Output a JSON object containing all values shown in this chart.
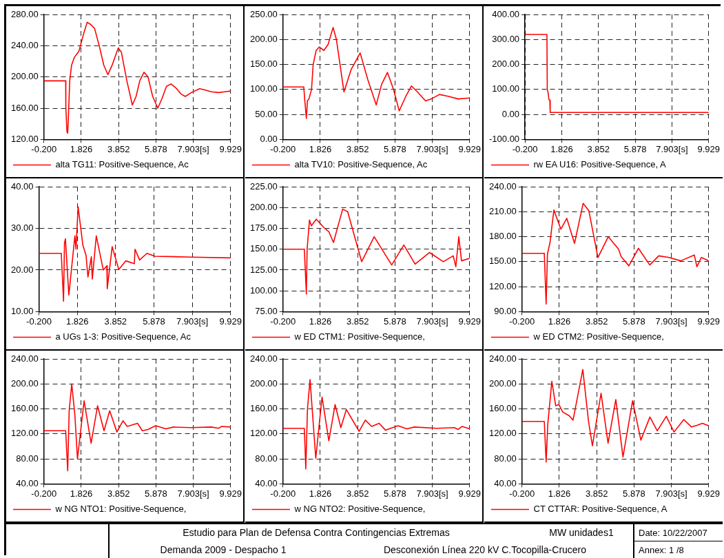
{
  "chart_data": [
    {
      "type": "line",
      "xlim": [
        -0.2,
        9.929
      ],
      "xticks": [
        {
          "value": -0.2,
          "label": "-0.200"
        },
        {
          "value": 1.826,
          "label": "1.826"
        },
        {
          "value": 3.852,
          "label": "3.852"
        },
        {
          "value": 5.878,
          "label": "5.878"
        },
        {
          "value": 7.903,
          "label": "7.903[s]"
        },
        {
          "value": 9.929,
          "label": "9.929"
        }
      ],
      "ylim": [
        120,
        280
      ],
      "yticks": [
        {
          "value": 120,
          "label": "120.00"
        },
        {
          "value": 160,
          "label": "160.00"
        },
        {
          "value": 200,
          "label": "200.00"
        },
        {
          "value": 240,
          "label": "240.00"
        },
        {
          "value": 280,
          "label": "280.00"
        }
      ],
      "grid": true,
      "legend": "bottom",
      "series": [
        {
          "name": "alta TG11: Positive-Sequence, Ac",
          "color": "#ff0000",
          "x": [
            -0.2,
            0.98,
            0.99,
            1.05,
            1.09,
            1.13,
            1.2,
            1.3,
            1.45,
            1.7,
            1.95,
            2.15,
            2.35,
            2.55,
            2.8,
            3.05,
            3.27,
            3.5,
            3.83,
            4.0,
            4.3,
            4.6,
            4.8,
            5.0,
            5.23,
            5.45,
            5.7,
            5.98,
            6.2,
            6.45,
            6.7,
            7.0,
            7.25,
            7.47,
            7.8,
            8.25,
            8.6,
            8.88,
            9.3,
            9.6,
            9.929
          ],
          "values": [
            195,
            195,
            160,
            130,
            128,
            150,
            195,
            215,
            225,
            233,
            255,
            270,
            267,
            262,
            240,
            215,
            203,
            215,
            237,
            232,
            195,
            164,
            175,
            195,
            206,
            200,
            175,
            160,
            172,
            188,
            191,
            185,
            178,
            175,
            180,
            185,
            183,
            181,
            180,
            181,
            182
          ]
        }
      ]
    },
    {
      "type": "line",
      "xlim": [
        -0.2,
        9.929
      ],
      "xticks": [
        {
          "value": -0.2,
          "label": "-0.200"
        },
        {
          "value": 1.826,
          "label": "1.826"
        },
        {
          "value": 3.852,
          "label": "3.852"
        },
        {
          "value": 5.878,
          "label": "5.878"
        },
        {
          "value": 7.903,
          "label": "7.903[s]"
        },
        {
          "value": 9.929,
          "label": "9.929"
        }
      ],
      "ylim": [
        0,
        250
      ],
      "yticks": [
        {
          "value": 0,
          "label": "0.00"
        },
        {
          "value": 50,
          "label": "50.00"
        },
        {
          "value": 100,
          "label": "100.00"
        },
        {
          "value": 150,
          "label": "150.00"
        },
        {
          "value": 200,
          "label": "200.00"
        },
        {
          "value": 250,
          "label": "250.00"
        }
      ],
      "grid": true,
      "legend": "bottom",
      "series": [
        {
          "name": "alta TV10: Positive-Sequence, Ac",
          "color": "#ff0000",
          "x": [
            -0.2,
            0.93,
            0.98,
            1.07,
            1.13,
            1.2,
            1.35,
            1.44,
            1.6,
            1.77,
            2.02,
            2.25,
            2.52,
            2.7,
            3.11,
            3.5,
            3.99,
            4.4,
            4.86,
            5.15,
            5.47,
            5.8,
            6.11,
            6.45,
            6.77,
            7.1,
            7.54,
            7.9,
            8.29,
            8.8,
            9.3,
            9.929
          ],
          "values": [
            105,
            105,
            80,
            42,
            78,
            80,
            100,
            150,
            178,
            185,
            178,
            190,
            224,
            200,
            95,
            140,
            173,
            120,
            69,
            110,
            134,
            100,
            57,
            85,
            107,
            95,
            77,
            82,
            90,
            86,
            81,
            83
          ]
        }
      ]
    },
    {
      "type": "line",
      "xlim": [
        -0.2,
        9.929
      ],
      "xticks": [
        {
          "value": -0.2,
          "label": "-0.200"
        },
        {
          "value": 1.826,
          "label": "1.826"
        },
        {
          "value": 3.852,
          "label": "3.852"
        },
        {
          "value": 5.878,
          "label": "5.878"
        },
        {
          "value": 7.903,
          "label": "7.903[s]"
        },
        {
          "value": 9.929,
          "label": "9.929"
        }
      ],
      "ylim": [
        -100,
        400
      ],
      "yticks": [
        {
          "value": -100,
          "label": "-100.00"
        },
        {
          "value": 0,
          "label": "0.00"
        },
        {
          "value": 100,
          "label": "100.00"
        },
        {
          "value": 200,
          "label": "200.00"
        },
        {
          "value": 300,
          "label": "300.00"
        },
        {
          "value": 400,
          "label": "400.00"
        }
      ],
      "grid": true,
      "legend": "bottom",
      "series": [
        {
          "name": "rw EA U16: Positive-Sequence, A",
          "color": "#ff0000",
          "x": [
            -0.2,
            1.01,
            1.03,
            1.08,
            1.12,
            1.17,
            1.19,
            9.929
          ],
          "values": [
            320,
            320,
            100,
            85,
            60,
            57,
            8,
            8
          ]
        }
      ]
    },
    {
      "type": "line",
      "xlim": [
        -0.2,
        9.929
      ],
      "xticks": [
        {
          "value": -0.2,
          "label": "-0.200"
        },
        {
          "value": 1.826,
          "label": "1.826"
        },
        {
          "value": 3.852,
          "label": "3.852"
        },
        {
          "value": 5.878,
          "label": "5.878"
        },
        {
          "value": 7.903,
          "label": "7.903[s]"
        },
        {
          "value": 9.929,
          "label": "9.929"
        }
      ],
      "ylim": [
        10,
        40
      ],
      "yticks": [
        {
          "value": 10,
          "label": "10.00"
        },
        {
          "value": 20,
          "label": "20.00"
        },
        {
          "value": 30,
          "label": "30.00"
        },
        {
          "value": 40,
          "label": "40.00"
        }
      ],
      "grid": true,
      "legend": "bottom",
      "series": [
        {
          "name": "a UGs 1-3: Positive-Sequence, Ac",
          "color": "#ff0000",
          "x": [
            -0.2,
            0.98,
            1.1,
            1.15,
            1.2,
            1.38,
            1.7,
            1.76,
            1.87,
            2.12,
            2.29,
            2.39,
            2.57,
            2.62,
            2.83,
            3.2,
            3.39,
            3.41,
            3.67,
            4.02,
            4.39,
            4.84,
            4.88,
            5.12,
            5.51,
            5.93,
            7.9,
            9.929
          ],
          "values": [
            24,
            24,
            12.5,
            26.5,
            27.5,
            14,
            28.2,
            25,
            35.2,
            26,
            23.5,
            18.3,
            23.2,
            17.8,
            28.2,
            20,
            21,
            15.5,
            25.6,
            20.1,
            22.2,
            21.5,
            25,
            22.4,
            24,
            23.3,
            23.1,
            22.9
          ]
        }
      ]
    },
    {
      "type": "line",
      "xlim": [
        -0.2,
        9.929
      ],
      "xticks": [
        {
          "value": -0.2,
          "label": "-0.200"
        },
        {
          "value": 1.826,
          "label": "1.826"
        },
        {
          "value": 3.852,
          "label": "3.852"
        },
        {
          "value": 5.878,
          "label": "5.878"
        },
        {
          "value": 7.903,
          "label": "7.903[s]"
        },
        {
          "value": 9.929,
          "label": "9.929"
        }
      ],
      "ylim": [
        75,
        225
      ],
      "yticks": [
        {
          "value": 75,
          "label": "75.00"
        },
        {
          "value": 100,
          "label": "100.00"
        },
        {
          "value": 125,
          "label": "125.00"
        },
        {
          "value": 150,
          "label": "150.00"
        },
        {
          "value": 175,
          "label": "175.00"
        },
        {
          "value": 200,
          "label": "200.00"
        },
        {
          "value": 225,
          "label": "225.00"
        }
      ],
      "grid": true,
      "legend": "bottom",
      "series": [
        {
          "name": "w ED CTM1: Positive-Sequence,",
          "color": "#ff0000",
          "x": [
            -0.2,
            0.96,
            1.07,
            1.11,
            1.24,
            1.34,
            1.61,
            2.02,
            2.29,
            2.54,
            3.04,
            3.31,
            4.07,
            4.75,
            5.7,
            6.36,
            6.97,
            7.75,
            8.5,
            9.04,
            9.18,
            9.34,
            9.49,
            9.929
          ],
          "values": [
            150,
            150,
            96,
            150,
            185,
            178,
            186,
            176,
            171,
            158,
            198,
            195,
            135,
            165,
            131,
            155,
            132,
            146,
            135,
            142,
            129,
            165,
            136,
            139
          ]
        }
      ]
    },
    {
      "type": "line",
      "xlim": [
        -0.2,
        9.929
      ],
      "xticks": [
        {
          "value": -0.2,
          "label": "-0.200"
        },
        {
          "value": 1.826,
          "label": "1.826"
        },
        {
          "value": 3.852,
          "label": "3.852"
        },
        {
          "value": 5.878,
          "label": "5.878"
        },
        {
          "value": 7.903,
          "label": "7.903[s]"
        },
        {
          "value": 9.929,
          "label": "9.929"
        }
      ],
      "ylim": [
        90,
        240
      ],
      "yticks": [
        {
          "value": 90,
          "label": "90.00"
        },
        {
          "value": 120,
          "label": "120.00"
        },
        {
          "value": 150,
          "label": "150.00"
        },
        {
          "value": 180,
          "label": "180.00"
        },
        {
          "value": 210,
          "label": "210.00"
        },
        {
          "value": 240,
          "label": "240.00"
        }
      ],
      "grid": true,
      "legend": "bottom",
      "series": [
        {
          "name": "w ED CTM2: Positive-Sequence,",
          "color": "#ff0000",
          "x": [
            -0.2,
            1.01,
            1.11,
            1.18,
            1.32,
            1.53,
            1.91,
            2.23,
            2.65,
            3.12,
            3.43,
            3.92,
            4.48,
            5.04,
            5.18,
            5.6,
            6.12,
            6.73,
            7.22,
            7.78,
            8.41,
            9.15,
            9.29,
            9.53,
            9.929
          ],
          "values": [
            160,
            160,
            99,
            159,
            173,
            212,
            189,
            202,
            172,
            220,
            211,
            155,
            180,
            165,
            156,
            145,
            166,
            146,
            157,
            155,
            151,
            158,
            144,
            155,
            151
          ]
        }
      ]
    },
    {
      "type": "line",
      "xlim": [
        -0.2,
        9.929
      ],
      "xticks": [
        {
          "value": -0.2,
          "label": "-0.200"
        },
        {
          "value": 1.826,
          "label": "1.826"
        },
        {
          "value": 3.852,
          "label": "3.852"
        },
        {
          "value": 5.878,
          "label": "5.878"
        },
        {
          "value": 7.903,
          "label": "7.903[s]"
        },
        {
          "value": 9.929,
          "label": "9.929"
        }
      ],
      "ylim": [
        40,
        240
      ],
      "yticks": [
        {
          "value": 40,
          "label": "40.00"
        },
        {
          "value": 80,
          "label": "80.00"
        },
        {
          "value": 120,
          "label": "120.00"
        },
        {
          "value": 160,
          "label": "160.00"
        },
        {
          "value": 200,
          "label": "200.00"
        },
        {
          "value": 240,
          "label": "240.00"
        }
      ],
      "grid": true,
      "legend": "bottom",
      "series": [
        {
          "name": "w NG NTO1: Positive-Sequence,",
          "color": "#ff0000",
          "x": [
            -0.2,
            0.98,
            1.09,
            1.17,
            1.31,
            1.48,
            1.62,
            1.98,
            2.36,
            2.71,
            3.06,
            3.37,
            3.76,
            4.09,
            4.32,
            4.88,
            5.14,
            5.44,
            5.86,
            6.42,
            6.84,
            7.76,
            8.88,
            9.3,
            9.44,
            9.929
          ],
          "values": [
            125,
            125,
            61,
            157,
            200,
            150,
            80,
            173,
            105,
            165,
            125,
            157,
            123,
            141,
            132,
            137,
            125,
            127,
            133,
            128,
            131,
            130,
            131,
            129,
            132,
            131
          ]
        }
      ]
    },
    {
      "type": "line",
      "xlim": [
        -0.2,
        9.929
      ],
      "xticks": [
        {
          "value": -0.2,
          "label": "-0.200"
        },
        {
          "value": 1.826,
          "label": "1.826"
        },
        {
          "value": 3.852,
          "label": "3.852"
        },
        {
          "value": 5.878,
          "label": "5.878"
        },
        {
          "value": 7.903,
          "label": "7.903[s]"
        },
        {
          "value": 9.929,
          "label": "9.929"
        }
      ],
      "ylim": [
        40,
        240
      ],
      "yticks": [
        {
          "value": 40,
          "label": "40.00"
        },
        {
          "value": 80,
          "label": "80.00"
        },
        {
          "value": 120,
          "label": "120.00"
        },
        {
          "value": 160,
          "label": "160.00"
        },
        {
          "value": 200,
          "label": "200.00"
        },
        {
          "value": 240,
          "label": "240.00"
        }
      ],
      "grid": true,
      "legend": "bottom",
      "series": [
        {
          "name": "w NG NTO2: Positive-Sequence,",
          "color": "#ff0000",
          "x": [
            -0.2,
            0.96,
            1.04,
            1.13,
            1.27,
            1.58,
            1.92,
            2.29,
            2.63,
            2.94,
            3.24,
            3.93,
            4.27,
            4.61,
            5.02,
            5.36,
            6.04,
            6.52,
            6.93,
            8.16,
            9.1,
            9.31,
            9.52,
            9.929
          ],
          "values": [
            129,
            129,
            64,
            160,
            207,
            81,
            179,
            109,
            167,
            130,
            159,
            124,
            142,
            132,
            137,
            126,
            133,
            128,
            131,
            129,
            130,
            127,
            132,
            128
          ]
        }
      ]
    },
    {
      "type": "line",
      "xlim": [
        -0.2,
        9.929
      ],
      "xticks": [
        {
          "value": -0.2,
          "label": "-0.200"
        },
        {
          "value": 1.826,
          "label": "1.826"
        },
        {
          "value": 3.852,
          "label": "3.852"
        },
        {
          "value": 5.878,
          "label": "5.878"
        },
        {
          "value": 7.903,
          "label": "7.903[s]"
        },
        {
          "value": 9.929,
          "label": "9.929"
        }
      ],
      "ylim": [
        40,
        240
      ],
      "yticks": [
        {
          "value": 40,
          "label": "40.00"
        },
        {
          "value": 80,
          "label": "80.00"
        },
        {
          "value": 120,
          "label": "120.00"
        },
        {
          "value": 160,
          "label": "160.00"
        },
        {
          "value": 200,
          "label": "200.00"
        },
        {
          "value": 240,
          "label": "240.00"
        }
      ],
      "grid": true,
      "legend": "bottom",
      "series": [
        {
          "name": "CT CTTAR: Positive-Sequence, A",
          "color": "#ff0000",
          "x": [
            -0.2,
            1.01,
            1.11,
            1.2,
            1.42,
            1.63,
            1.8,
            2.01,
            2.36,
            2.57,
            3.1,
            3.41,
            3.62,
            4.09,
            4.47,
            4.89,
            5.28,
            5.8,
            6.25,
            6.74,
            7.14,
            7.63,
            8.05,
            8.58,
            9.0,
            9.31,
            9.59,
            9.929
          ],
          "values": [
            140,
            140,
            75,
            136,
            204,
            165,
            167,
            155,
            149,
            142,
            223,
            140,
            101,
            185,
            105,
            175,
            83,
            173,
            110,
            147,
            125,
            148,
            123,
            143,
            131,
            134,
            137,
            133
          ]
        }
      ]
    },
    {
      "type": "other",
      "annotations": [
        "Estudio para Plan de Defensa Contra Contingencias Extremas",
        "MW unidades1",
        "Date:  10/22/2007",
        "Demanda 2009 - Despacho 1",
        "Desconexión Línea 220 kV C.Tocopilla-Crucero",
        "Annex: 1 /8"
      ]
    }
  ]
}
